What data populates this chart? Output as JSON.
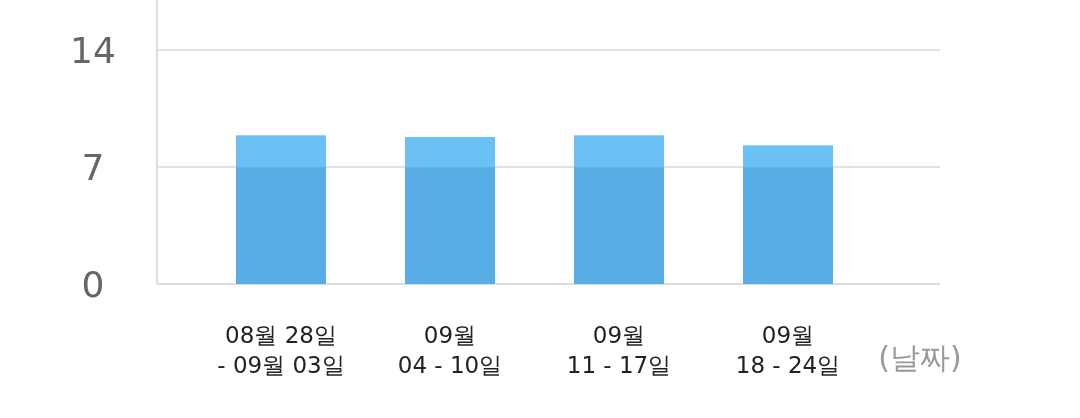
{
  "chart_data": {
    "type": "bar",
    "stacked": true,
    "categories": [
      "08월 28일\n- 09월 03일",
      "09월\n04 - 10일",
      "09월\n11 - 17일",
      "09월\n18 - 24일"
    ],
    "series": [
      {
        "color": "#58aee4",
        "values": [
          7,
          7,
          7,
          7
        ]
      },
      {
        "color": "#6bc1f4",
        "values": [
          1.9,
          1.8,
          1.9,
          1.3
        ]
      }
    ],
    "xlabel": "(날짜)",
    "ylim": [
      0,
      17
    ],
    "yticks": [
      0,
      7,
      14
    ],
    "grid": "y"
  }
}
